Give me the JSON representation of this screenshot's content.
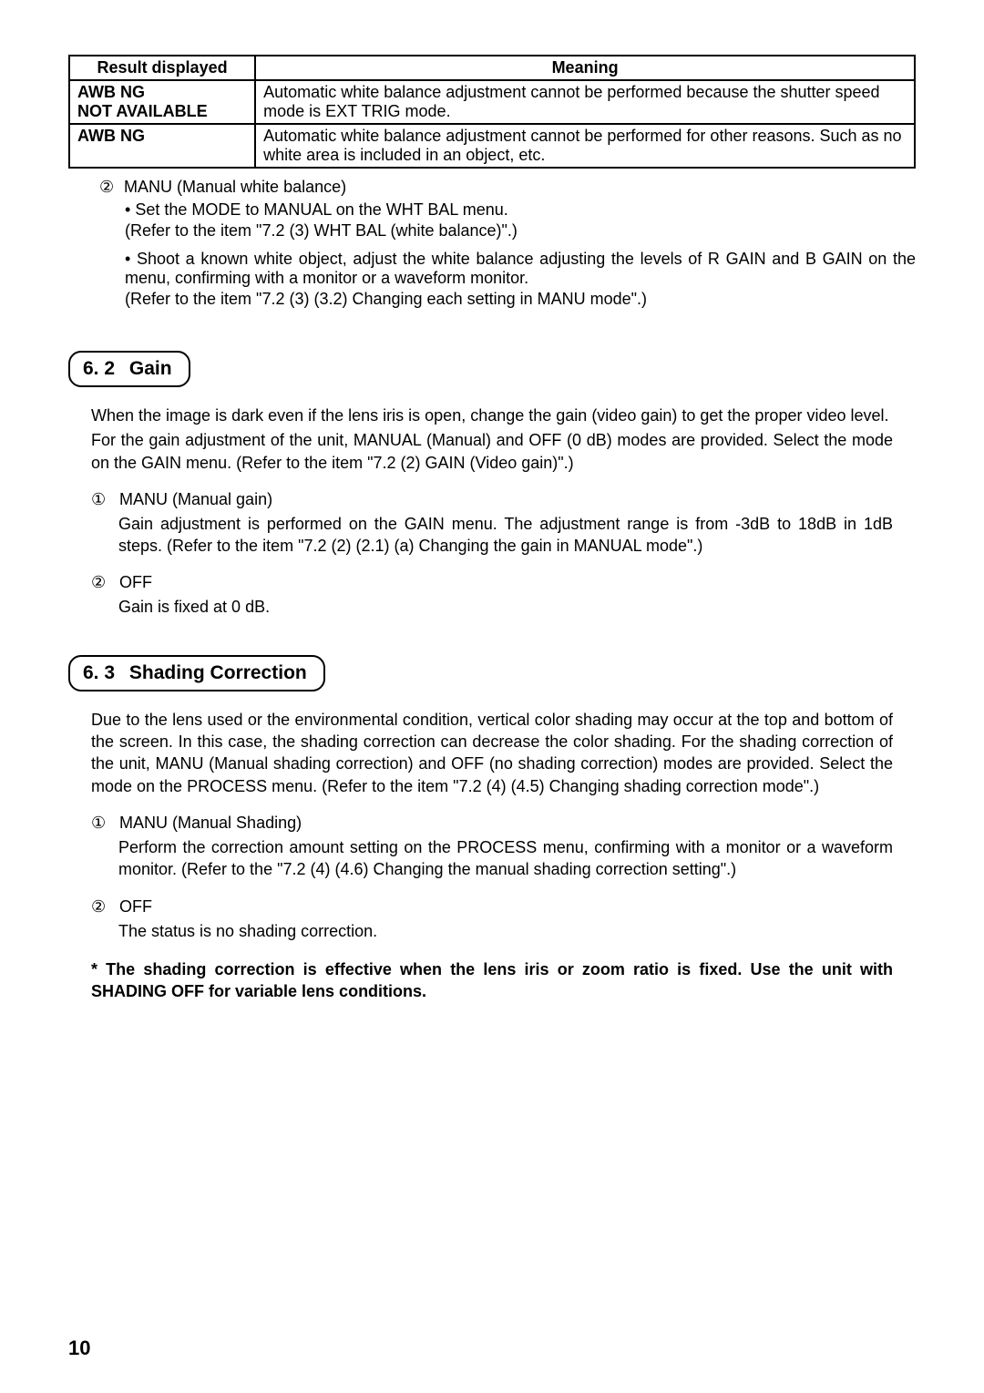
{
  "table": {
    "headers": [
      "Result displayed",
      "Meaning"
    ],
    "rows": [
      {
        "result": "AWB NG\nNOT AVAILABLE",
        "meaning": "Automatic white balance adjustment cannot be performed because the shutter speed mode is EXT TRIG mode."
      },
      {
        "result": "AWB NG",
        "meaning": "Automatic white balance adjustment cannot be performed for other reasons. Such as no white area is included in an object, etc."
      }
    ]
  },
  "manu_wb": {
    "marker": "②",
    "label": "MANU (Manual white balance)",
    "bullet1": "Set the MODE to MANUAL on the WHT BAL menu.",
    "ref1": "(Refer to the item \"7.2 (3) WHT BAL (white balance)\".)",
    "bullet2": "Shoot a known white object, adjust the white balance adjusting the levels of R GAIN and B GAIN on the menu, confirming with a monitor or a waveform monitor.",
    "ref2": "(Refer to the item \"7.2 (3) (3.2) Changing each setting in MANU mode\".)"
  },
  "sec62": {
    "num": "6. 2",
    "title": "Gain",
    "p1": "When the image is dark even if the lens iris is open, change the gain (video gain) to get the proper video level.",
    "p2": "For the gain adjustment of the unit, MANUAL (Manual) and OFF (0 dB) modes are provided. Select the mode on the GAIN menu. (Refer to the item \"7.2 (2) GAIN (Video gain)\".)",
    "item1": {
      "marker": "①",
      "label": "MANU (Manual gain)",
      "desc": "Gain adjustment is performed on the GAIN menu. The adjustment range is from -3dB to 18dB in 1dB steps. (Refer to the item \"7.2 (2) (2.1) (a) Changing the gain in MANUAL mode\".)"
    },
    "item2": {
      "marker": "②",
      "label": "OFF",
      "desc": "Gain is fixed at 0 dB."
    }
  },
  "sec63": {
    "num": "6. 3",
    "title": "Shading Correction",
    "p1": "Due to the lens used or the environmental condition, vertical color shading may occur at the top and bottom of the screen. In this case, the shading correction can decrease the color shading. For the shading correction of the unit, MANU (Manual shading correction) and OFF (no shading correction) modes are provided. Select the mode on the PROCESS menu. (Refer to the item \"7.2 (4) (4.5) Changing shading correction mode\".)",
    "item1": {
      "marker": "①",
      "label": "MANU (Manual Shading)",
      "desc": "Perform the correction amount setting on the PROCESS menu, confirming with a monitor or a waveform monitor. (Refer to the \"7.2 (4) (4.6) Changing the manual shading correction setting\".)"
    },
    "item2": {
      "marker": "②",
      "label": "OFF",
      "desc": "The status is no shading correction."
    },
    "note": "* The shading correction is effective when the lens iris or zoom ratio is fixed. Use the unit with SHADING OFF for variable lens conditions."
  },
  "page_number": "10"
}
